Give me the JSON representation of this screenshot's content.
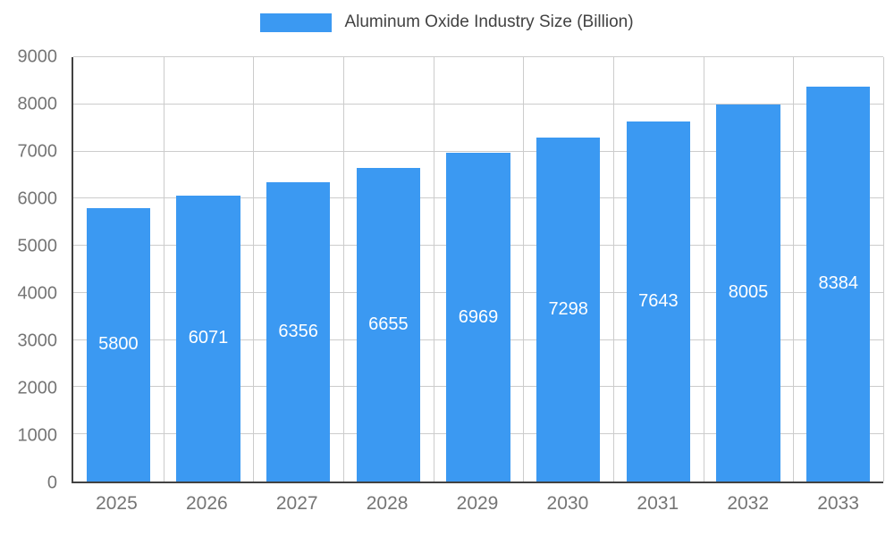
{
  "chart_data": {
    "type": "bar",
    "title": "Aluminum Oxide Industry Size (Billion)",
    "categories": [
      "2025",
      "2026",
      "2027",
      "2028",
      "2029",
      "2030",
      "2031",
      "2032",
      "2033"
    ],
    "values": [
      5800,
      6071,
      6356,
      6655,
      6969,
      7298,
      7643,
      8005,
      8384
    ],
    "xlabel": "",
    "ylabel": "",
    "ylim": [
      0,
      9000
    ],
    "ytick_step": 1000,
    "yticks": [
      "0",
      "1000",
      "2000",
      "3000",
      "4000",
      "5000",
      "6000",
      "7000",
      "8000",
      "9000"
    ],
    "grid": true,
    "legend_position": "top-center",
    "value_label_position": "centered-inside-bar",
    "colors": {
      "bar": "#3B99F2",
      "bar_value_text": "#FFFFFF",
      "axis": "#424242",
      "gridline": "#CCCCCC",
      "tick_text": "#757575",
      "legend_text": "#424242",
      "background": "#FFFFFF"
    }
  }
}
